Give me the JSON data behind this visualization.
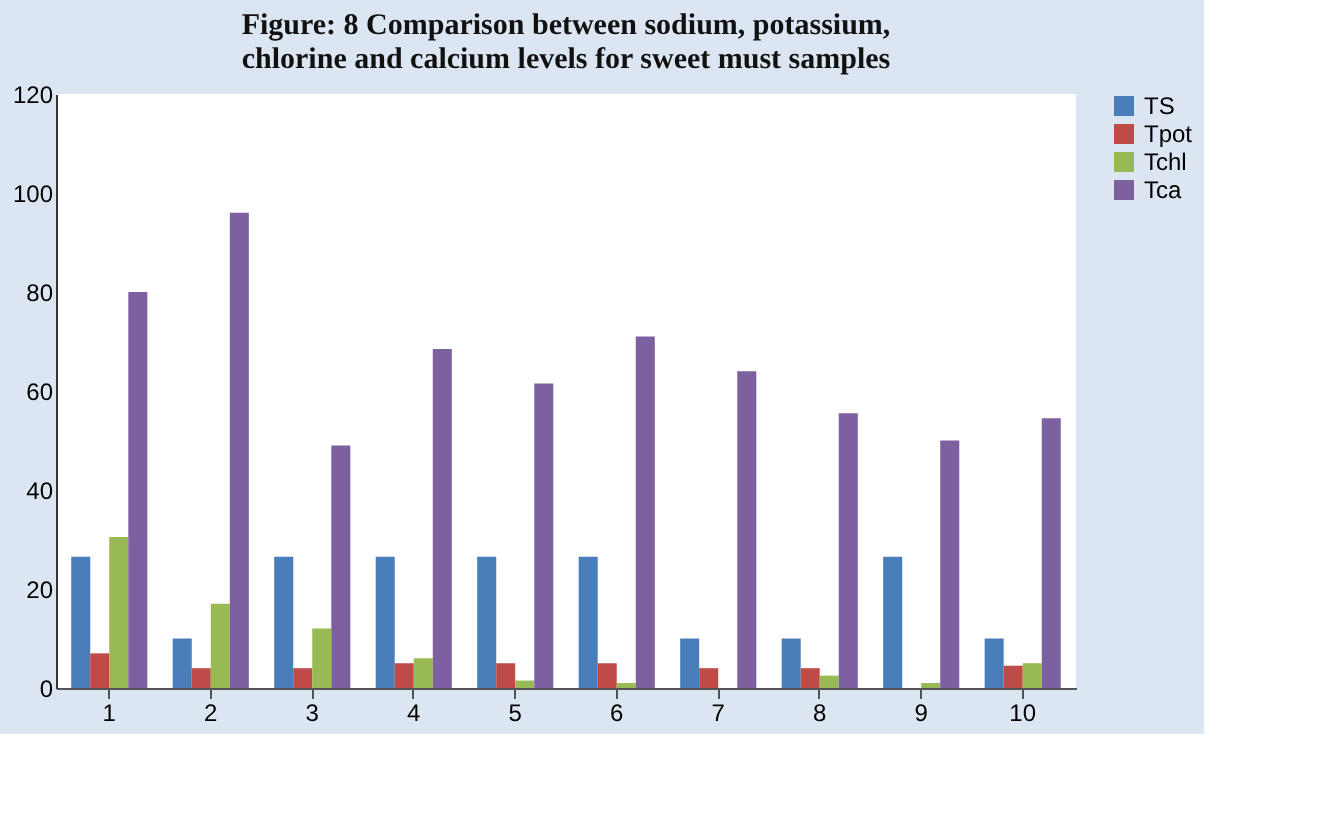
{
  "chart_data": {
    "type": "bar",
    "title": [
      "Figure: 8 Comparison between sodium, potassium,",
      "chlorine and calcium levels for sweet must samples"
    ],
    "categories": [
      "1",
      "2",
      "3",
      "4",
      "5",
      "6",
      "7",
      "8",
      "9",
      "10"
    ],
    "series": [
      {
        "name": "TS",
        "color": "#4a7ebb",
        "values": [
          26.5,
          10,
          26.5,
          26.5,
          26.5,
          26.5,
          10,
          10,
          26.5,
          10
        ]
      },
      {
        "name": "Tpot",
        "color": "#be4b48",
        "values": [
          7,
          4,
          4,
          5,
          5,
          5,
          4,
          4,
          0,
          4.5
        ]
      },
      {
        "name": "Tchl",
        "color": "#98b954",
        "values": [
          30.5,
          17,
          12,
          6,
          1.5,
          1,
          0,
          2.5,
          1,
          5
        ]
      },
      {
        "name": "Tca",
        "color": "#7d60a0",
        "values": [
          80,
          96,
          49,
          68.5,
          61.5,
          71,
          64,
          55.5,
          50,
          54.5
        ]
      }
    ],
    "ylim": [
      0,
      120
    ],
    "yticks": [
      0,
      20,
      40,
      60,
      80,
      100,
      120
    ],
    "grid": false,
    "legend": "right"
  }
}
